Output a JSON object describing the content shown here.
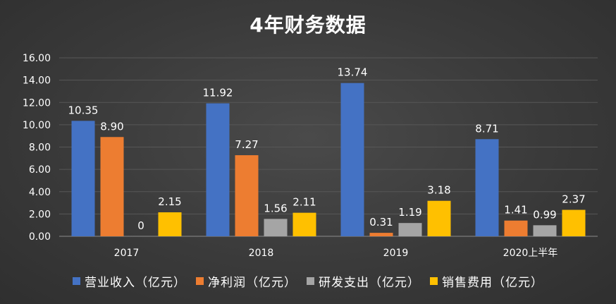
{
  "chart_data": {
    "type": "bar",
    "title": "4年财务数据",
    "categories": [
      "2017",
      "2018",
      "2019",
      "2020上半年"
    ],
    "ylim": [
      0,
      16
    ],
    "yticks": [
      "0.00",
      "2.00",
      "4.00",
      "6.00",
      "8.00",
      "10.00",
      "12.00",
      "14.00",
      "16.00"
    ],
    "grid": true,
    "legend_position": "bottom",
    "series": [
      {
        "name": "营业收入（亿元）",
        "color": "#4472c4",
        "values": [
          10.35,
          11.92,
          13.74,
          8.71
        ],
        "labels": [
          "10.35",
          "11.92",
          "13.74",
          "8.71"
        ]
      },
      {
        "name": "净利润（亿元）",
        "color": "#ed7d31",
        "values": [
          8.9,
          7.27,
          0.31,
          1.41
        ],
        "labels": [
          "8.90",
          "7.27",
          "0.31",
          "1.41"
        ]
      },
      {
        "name": "研发支出（亿元）",
        "color": "#a5a5a5",
        "values": [
          0,
          1.56,
          1.19,
          0.99
        ],
        "labels": [
          "0",
          "1.56",
          "1.19",
          "0.99"
        ]
      },
      {
        "name": "销售费用（亿元）",
        "color": "#ffc000",
        "values": [
          2.15,
          2.11,
          3.18,
          2.37
        ],
        "labels": [
          "2.15",
          "2.11",
          "3.18",
          "2.37"
        ]
      }
    ]
  }
}
